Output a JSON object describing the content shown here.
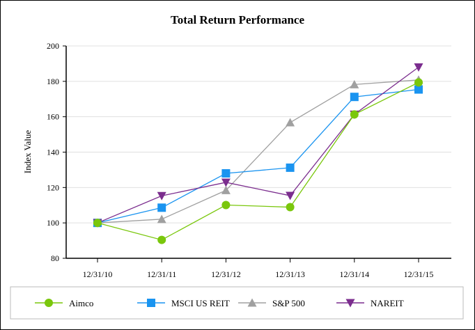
{
  "chart_data": {
    "type": "line",
    "title": "Total Return Performance",
    "xlabel": "",
    "ylabel": "Index Value",
    "ylim": [
      80,
      200
    ],
    "yticks": [
      80,
      100,
      120,
      140,
      160,
      180,
      200
    ],
    "grid": true,
    "legend_position": "bottom",
    "categories": [
      "12/31/10",
      "12/31/11",
      "12/31/12",
      "12/31/13",
      "12/31/14",
      "12/31/15"
    ],
    "series": [
      {
        "name": "Aimco",
        "color": "#7ac70c",
        "marker": "circle",
        "values": [
          100,
          90.4,
          110.1,
          108.9,
          161.3,
          179.4
        ]
      },
      {
        "name": "MSCI US REIT",
        "color": "#1a94f0",
        "marker": "square",
        "values": [
          100,
          108.6,
          128.0,
          131.2,
          171.2,
          175.4
        ]
      },
      {
        "name": "S&P 500",
        "color": "#a0a0a0",
        "marker": "triangle-up",
        "values": [
          100,
          102.1,
          118.4,
          156.7,
          178.2,
          180.8
        ]
      },
      {
        "name": "NAREIT",
        "color": "#7b2d8e",
        "marker": "triangle-down",
        "values": [
          100,
          115.3,
          122.9,
          115.4,
          161.3,
          188.0
        ]
      }
    ]
  }
}
